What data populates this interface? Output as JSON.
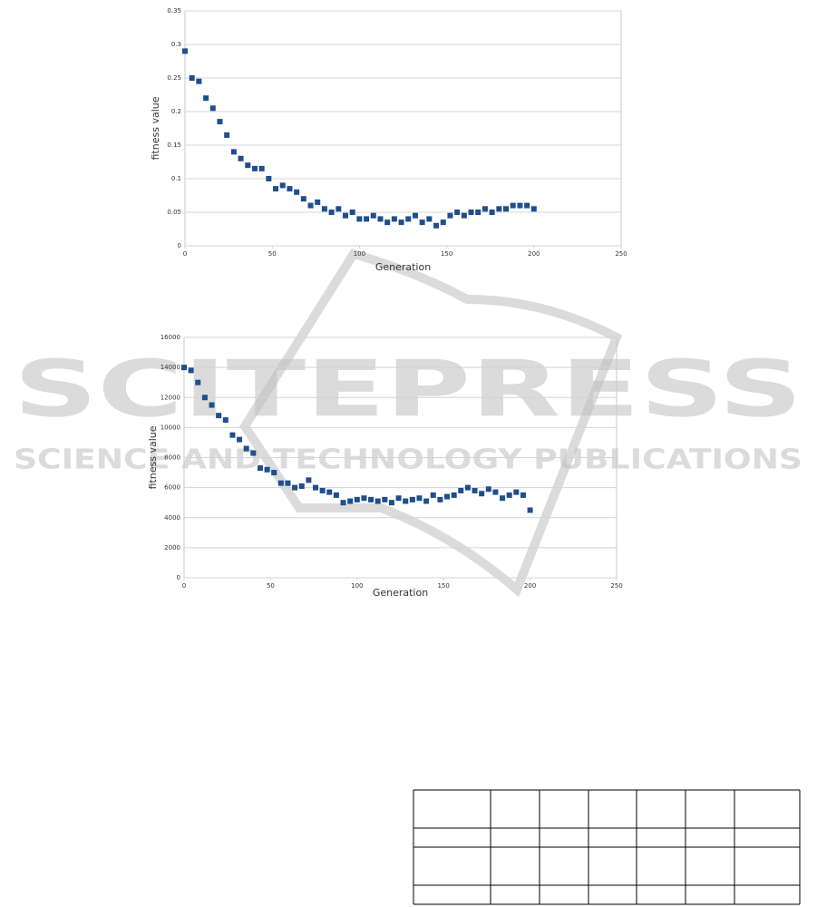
{
  "chart_data": [
    {
      "type": "scatter",
      "xlabel": "Generation",
      "ylabel": "fitness value",
      "color": "#1f4e8c",
      "grid": true,
      "xlim": [
        0,
        250
      ],
      "ylim": [
        0,
        0.35
      ],
      "xticks": [
        0,
        50,
        100,
        150,
        200,
        250
      ],
      "yticks": [
        0,
        0.05,
        0.1,
        0.15,
        0.2,
        0.25,
        0.3,
        0.35
      ],
      "x": [
        0,
        4,
        8,
        12,
        16,
        20,
        24,
        28,
        32,
        36,
        40,
        44,
        48,
        52,
        56,
        60,
        64,
        68,
        72,
        76,
        80,
        84,
        88,
        92,
        96,
        100,
        104,
        108,
        112,
        116,
        120,
        124,
        128,
        132,
        136,
        140,
        144,
        148,
        152,
        156,
        160,
        164,
        168,
        172,
        176,
        180,
        184,
        188,
        192,
        196,
        200
      ],
      "values": [
        0.29,
        0.25,
        0.245,
        0.22,
        0.205,
        0.185,
        0.165,
        0.14,
        0.13,
        0.12,
        0.115,
        0.115,
        0.1,
        0.085,
        0.09,
        0.085,
        0.08,
        0.07,
        0.06,
        0.065,
        0.055,
        0.05,
        0.055,
        0.045,
        0.05,
        0.04,
        0.04,
        0.045,
        0.04,
        0.035,
        0.04,
        0.035,
        0.04,
        0.045,
        0.035,
        0.04,
        0.03,
        0.035,
        0.045,
        0.05,
        0.045,
        0.05,
        0.05,
        0.055,
        0.05,
        0.055,
        0.055,
        0.06,
        0.06,
        0.06,
        0.055
      ]
    },
    {
      "type": "scatter",
      "xlabel": "Generation",
      "ylabel": "fitness value",
      "color": "#1f4e8c",
      "grid": true,
      "xlim": [
        0,
        250
      ],
      "ylim": [
        0,
        16000
      ],
      "xticks": [
        0,
        50,
        100,
        150,
        200,
        250
      ],
      "yticks": [
        0,
        2000,
        4000,
        6000,
        8000,
        10000,
        12000,
        14000,
        16000
      ],
      "x": [
        0,
        4,
        8,
        12,
        16,
        20,
        24,
        28,
        32,
        36,
        40,
        44,
        48,
        52,
        56,
        60,
        64,
        68,
        72,
        76,
        80,
        84,
        88,
        92,
        96,
        100,
        104,
        108,
        112,
        116,
        120,
        124,
        128,
        132,
        136,
        140,
        144,
        148,
        152,
        156,
        160,
        164,
        168,
        172,
        176,
        180,
        184,
        188,
        192,
        196,
        200
      ],
      "values": [
        14000,
        13800,
        13000,
        12000,
        11500,
        10800,
        10500,
        9500,
        9200,
        8600,
        8300,
        7300,
        7200,
        7000,
        6300,
        6300,
        6000,
        6100,
        6500,
        6000,
        5800,
        5700,
        5500,
        5000,
        5100,
        5200,
        5300,
        5200,
        5100,
        5200,
        5000,
        5300,
        5100,
        5200,
        5300,
        5100,
        5500,
        5200,
        5400,
        5500,
        5800,
        6000,
        5800,
        5600,
        5900,
        5700,
        5300,
        5500,
        5700,
        5500,
        4500
      ]
    }
  ],
  "watermark": {
    "title": "SCITEPRESS",
    "subtitle": "SCIENCE AND TECHNOLOGY PUBLICATIONS"
  }
}
